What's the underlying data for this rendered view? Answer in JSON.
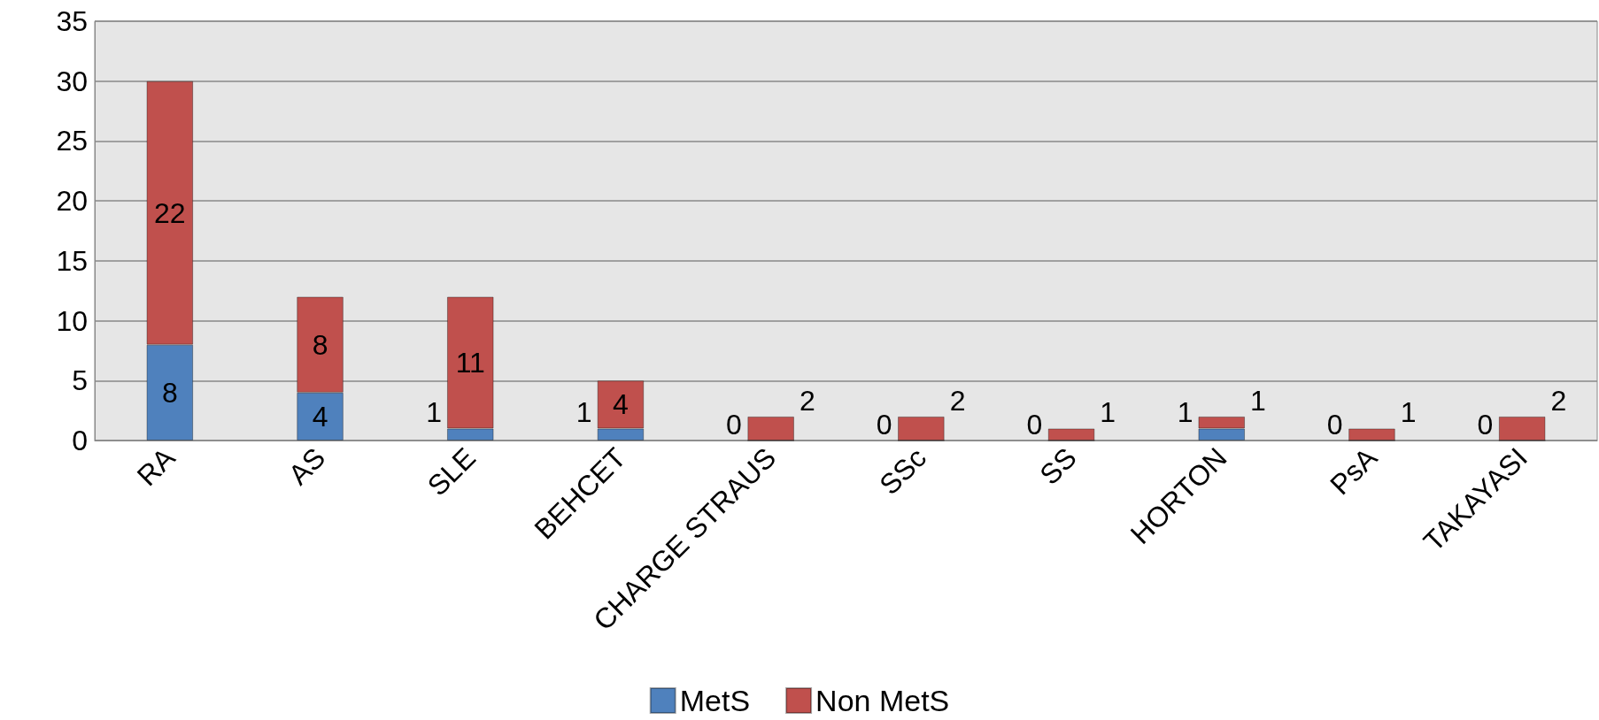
{
  "chart_data": {
    "type": "bar",
    "stacked": true,
    "categories": [
      "RA",
      "AS",
      "SLE",
      "BEHCET",
      "CHARGE STRAUS",
      "SSc",
      "SS",
      "HORTON",
      "PsA",
      "TAKAYASI"
    ],
    "series": [
      {
        "name": "MetS",
        "color": "#4f81bd",
        "values": [
          8,
          4,
          1,
          1,
          0,
          0,
          0,
          1,
          0,
          0
        ]
      },
      {
        "name": "Non MetS",
        "color": "#c0504d",
        "values": [
          22,
          8,
          11,
          4,
          2,
          2,
          1,
          1,
          1,
          2
        ]
      }
    ],
    "ylim": [
      0,
      35
    ],
    "yticks": [
      0,
      5,
      10,
      15,
      20,
      25,
      30,
      35
    ],
    "grid": "y",
    "legend": "bottom",
    "data_labels": true
  }
}
